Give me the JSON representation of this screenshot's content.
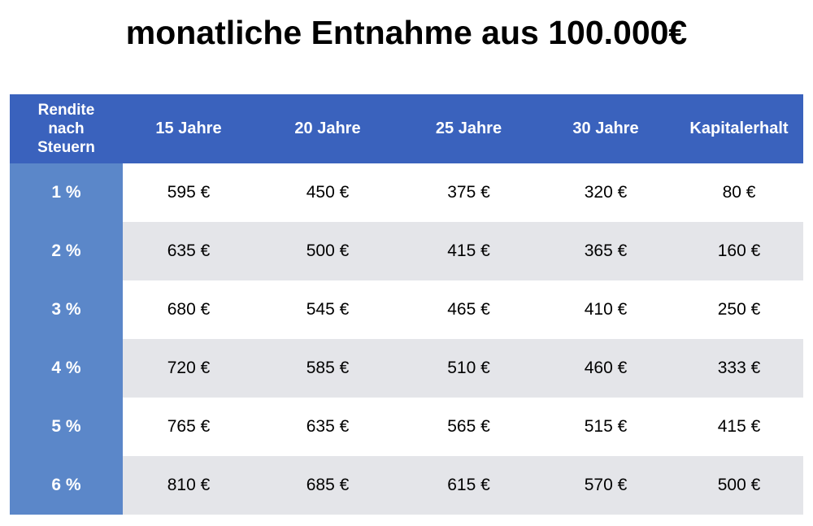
{
  "title": "monatliche Entnahme aus 100.000€",
  "colors": {
    "header_bg": "#3a62bd",
    "row_header_bg": "#5b87c9",
    "stripe_bg": "#e4e5e9",
    "cell_bg": "#ffffff"
  },
  "table": {
    "corner_header": [
      "Rendite",
      "nach",
      "Steuern"
    ],
    "columns": [
      "15 Jahre",
      "20 Jahre",
      "25 Jahre",
      "30 Jahre",
      "Kapitalerhalt"
    ],
    "rows": [
      {
        "label": "1 %",
        "cells": [
          "595 €",
          "450 €",
          "375 €",
          "320 €",
          "80 €"
        ]
      },
      {
        "label": "2 %",
        "cells": [
          "635 €",
          "500 €",
          "415 €",
          "365 €",
          "160 €"
        ]
      },
      {
        "label": "3 %",
        "cells": [
          "680 €",
          "545 €",
          "465 €",
          "410 €",
          "250 €"
        ]
      },
      {
        "label": "4 %",
        "cells": [
          "720 €",
          "585 €",
          "510 €",
          "460 €",
          "333 €"
        ]
      },
      {
        "label": "5 %",
        "cells": [
          "765 €",
          "635 €",
          "565 €",
          "515 €",
          "415 €"
        ]
      },
      {
        "label": "6 %",
        "cells": [
          "810 €",
          "685 €",
          "615 €",
          "570 €",
          "500 €"
        ]
      }
    ]
  }
}
